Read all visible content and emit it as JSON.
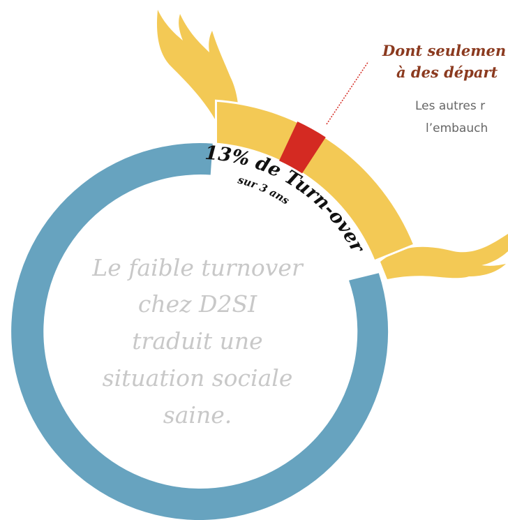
{
  "callout": {
    "title_lines": [
      "Dont seulemen",
      "à des départ"
    ],
    "body_lines": [
      "Les autres r",
      "l’embauch"
    ]
  },
  "ring_label": {
    "main": "13% de Turn-over",
    "sub": "sur 3 ans"
  },
  "center_text": {
    "lines": [
      "Le faible turnover",
      "chez D2SI",
      "traduit une",
      "situation sociale",
      "saine."
    ]
  }
}
